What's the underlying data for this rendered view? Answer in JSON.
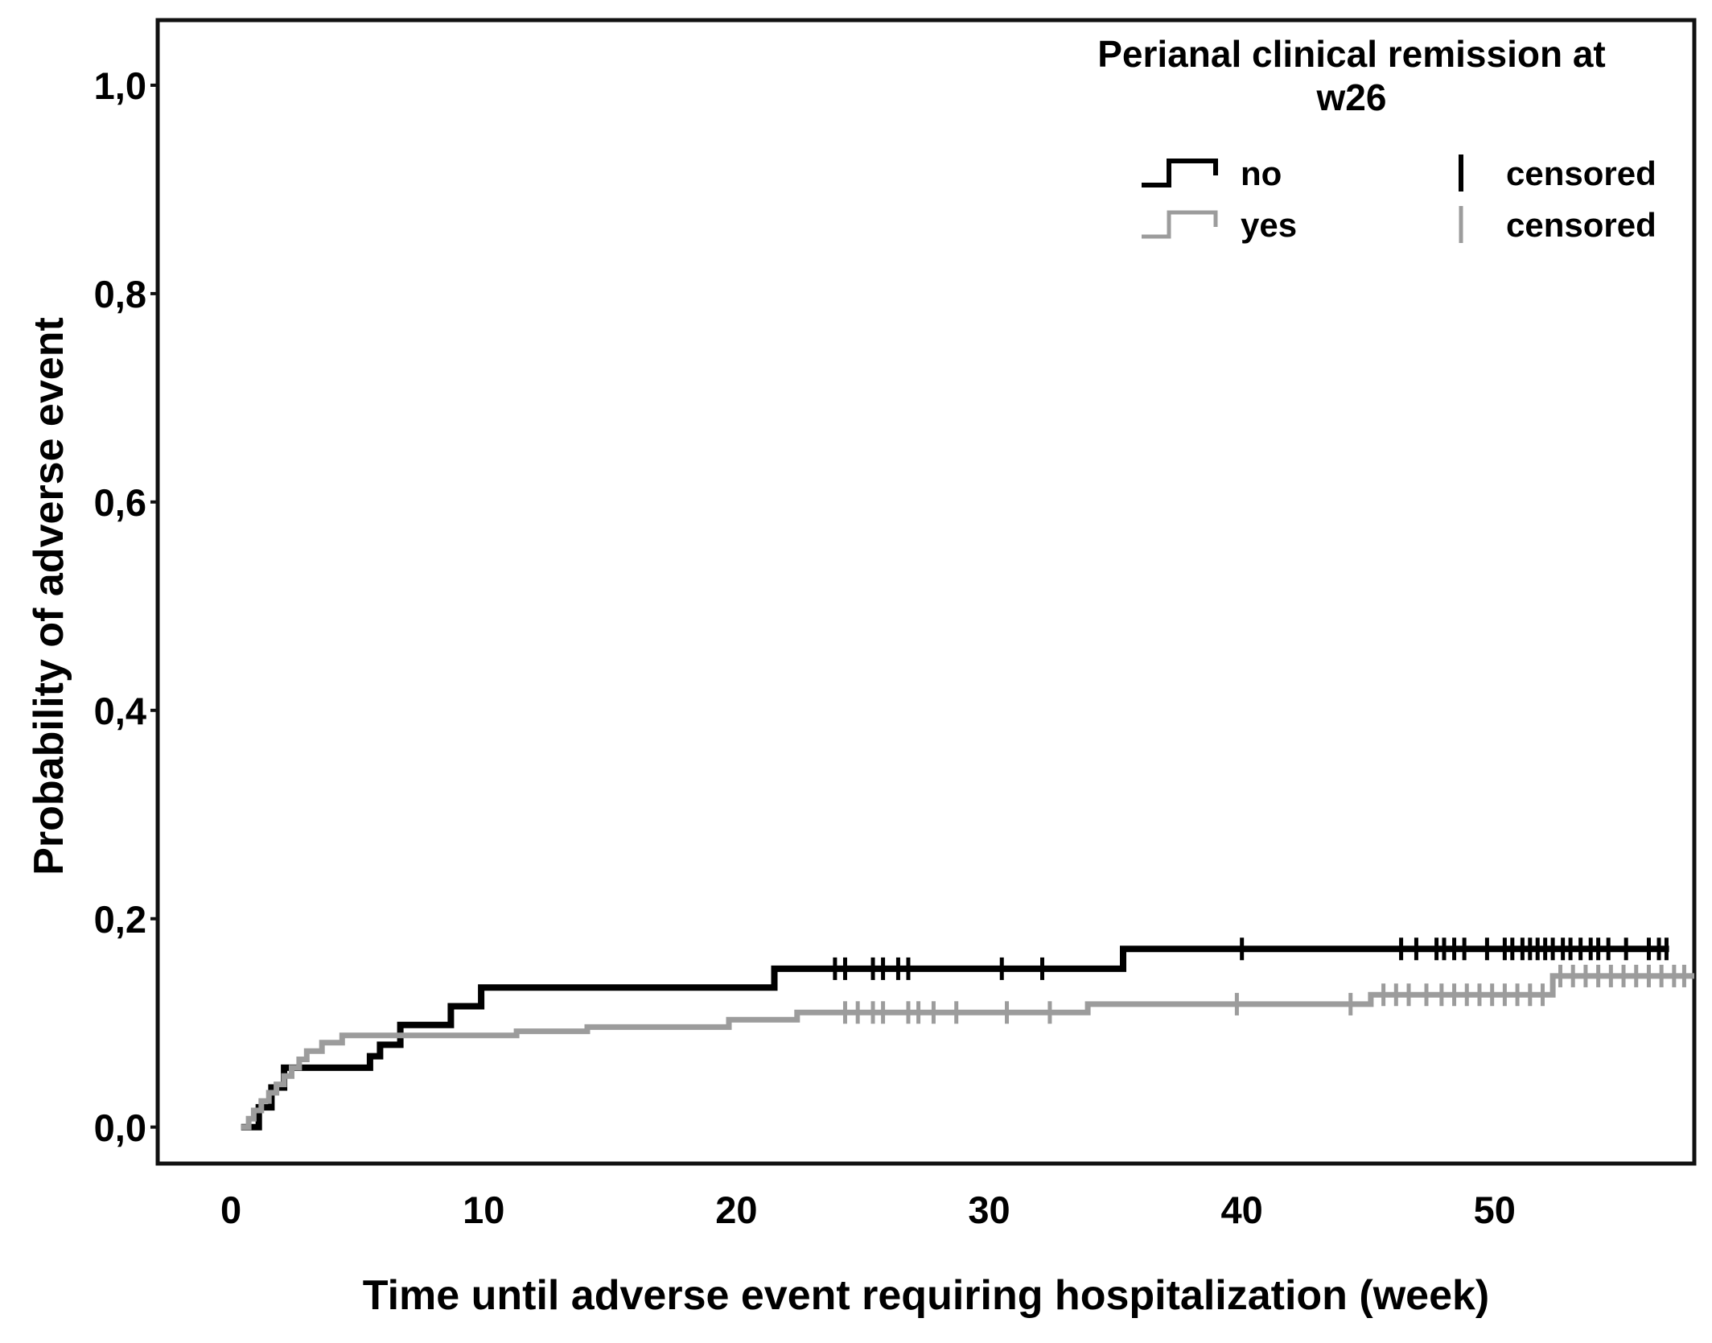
{
  "chart_data": {
    "type": "line",
    "subtype": "kaplan-meier-step",
    "title": "",
    "xlabel": "Time until adverse event requiring hospitalization (week)",
    "ylabel": "Probability of adverse event",
    "xlim": [
      -2.9,
      57.9
    ],
    "ylim": [
      -0.035,
      1.0625
    ],
    "grid": false,
    "legend_position": "top-right",
    "xticks": [
      {
        "value": 0,
        "label": "0"
      },
      {
        "value": 10,
        "label": "10"
      },
      {
        "value": 20,
        "label": "20"
      },
      {
        "value": 30,
        "label": "30"
      },
      {
        "value": 40,
        "label": "40"
      },
      {
        "value": 50,
        "label": "50"
      }
    ],
    "yticks": [
      {
        "value": 0.0,
        "label": "0,0"
      },
      {
        "value": 0.2,
        "label": "0,2"
      },
      {
        "value": 0.4,
        "label": "0,4"
      },
      {
        "value": 0.6,
        "label": "0,6"
      },
      {
        "value": 0.8,
        "label": "0,8"
      },
      {
        "value": 1.0,
        "label": "1,0"
      }
    ],
    "legend": {
      "title_line1": "Perianal clinical remission at",
      "title_line2": "w26",
      "entries": [
        {
          "label": "no",
          "color": "#000000",
          "censored_label": "censored"
        },
        {
          "label": "yes",
          "color": "#9c9c9c",
          "censored_label": "censored"
        }
      ]
    },
    "series": [
      {
        "name": "no",
        "color": "#000000",
        "line_width": 8,
        "end_week": 56.9,
        "steps": [
          [
            0.4,
            0.0
          ],
          [
            1.1,
            0.019
          ],
          [
            1.6,
            0.038
          ],
          [
            2.1,
            0.057
          ],
          [
            5.5,
            0.068
          ],
          [
            5.9,
            0.079
          ],
          [
            6.7,
            0.098
          ],
          [
            8.7,
            0.116
          ],
          [
            9.9,
            0.134
          ],
          [
            21.5,
            0.152
          ],
          [
            35.3,
            0.171
          ]
        ],
        "censored_weeks": [
          23.9,
          24.3,
          25.4,
          25.8,
          26.4,
          26.8,
          30.5,
          32.1,
          40.0,
          46.3,
          46.9,
          47.7,
          48.0,
          48.4,
          48.8,
          49.7,
          50.4,
          50.7,
          51.1,
          51.4,
          51.7,
          52.0,
          52.3,
          52.7,
          53.0,
          53.4,
          53.8,
          54.1,
          54.5,
          55.2,
          56.1,
          56.5,
          56.8
        ]
      },
      {
        "name": "yes",
        "color": "#9c9c9c",
        "line_width": 7,
        "end_week": 57.9,
        "steps": [
          [
            0.4,
            0.0
          ],
          [
            0.7,
            0.008
          ],
          [
            0.9,
            0.016
          ],
          [
            1.2,
            0.025
          ],
          [
            1.5,
            0.033
          ],
          [
            1.8,
            0.041
          ],
          [
            2.1,
            0.049
          ],
          [
            2.4,
            0.057
          ],
          [
            2.7,
            0.065
          ],
          [
            3.0,
            0.073
          ],
          [
            3.6,
            0.081
          ],
          [
            4.4,
            0.088
          ],
          [
            11.3,
            0.092
          ],
          [
            14.1,
            0.096
          ],
          [
            19.7,
            0.103
          ],
          [
            22.4,
            0.11
          ],
          [
            33.9,
            0.118
          ],
          [
            45.1,
            0.127
          ],
          [
            52.3,
            0.145
          ]
        ],
        "censored_weeks": [
          24.3,
          24.8,
          25.4,
          25.8,
          26.8,
          27.2,
          27.8,
          28.7,
          30.7,
          32.4,
          39.8,
          44.3,
          45.6,
          46.1,
          46.6,
          47.3,
          47.9,
          48.4,
          48.9,
          49.4,
          49.9,
          50.4,
          50.9,
          51.4,
          51.9,
          52.6,
          53.1,
          53.6,
          54.1,
          54.6,
          55.1,
          55.6,
          56.1,
          56.6,
          57.1,
          57.5
        ]
      }
    ]
  }
}
